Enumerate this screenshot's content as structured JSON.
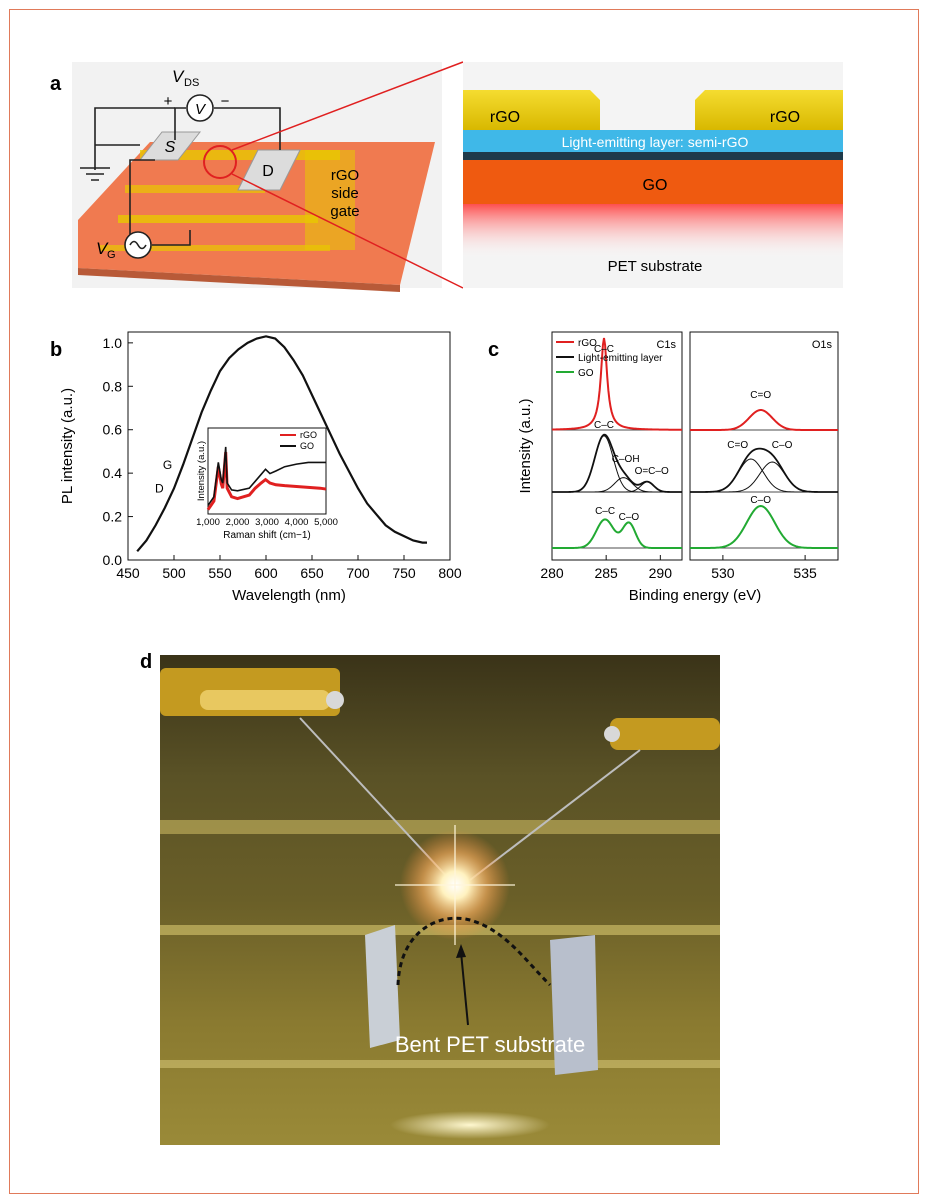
{
  "panel_labels": {
    "a": "a",
    "b": "b",
    "c": "c",
    "d": "d"
  },
  "panel_a": {
    "vds": "V",
    "vds_sub": "DS",
    "plus": "+",
    "minus": "−",
    "v_meter": "V",
    "vg": "V",
    "vg_sub": "G",
    "source": "S",
    "drain": "D",
    "side_gate_1": "rGO",
    "side_gate_2": "side",
    "side_gate_3": "gate",
    "cross_rgo_left": "rGO",
    "cross_rgo_right": "rGO",
    "light_layer": "Light-emitting layer: semi-rGO",
    "go_layer": "GO",
    "substrate": "PET substrate",
    "colors": {
      "substrate": "#f07a50",
      "gold": "#e8c800",
      "blue": "#3fb8e8",
      "go": "#ef5a10",
      "red": "#e02020"
    }
  },
  "panel_d": {
    "caption": "Bent PET substrate"
  },
  "chart_data": [
    {
      "id": "b",
      "type": "line",
      "xlabel": "Wavelength (nm)",
      "ylabel": "PL intensity (a.u.)",
      "xlim": [
        450,
        800
      ],
      "ylim": [
        0.0,
        1.05
      ],
      "xticks": [
        "450",
        "500",
        "550",
        "600",
        "650",
        "700",
        "750",
        "800"
      ],
      "yticks": [
        "0.0",
        "0.2",
        "0.4",
        "0.6",
        "0.8",
        "1.0"
      ],
      "annotations": [
        "D",
        "G"
      ],
      "series": [
        {
          "x": [
            460,
            470,
            480,
            490,
            500,
            510,
            520,
            530,
            540,
            550,
            560,
            570,
            580,
            590,
            600,
            610,
            620,
            630,
            640,
            650,
            660,
            670,
            680,
            690,
            700,
            710,
            720,
            730,
            740,
            750,
            760,
            770,
            775
          ],
          "y": [
            0.04,
            0.09,
            0.16,
            0.24,
            0.33,
            0.44,
            0.56,
            0.68,
            0.78,
            0.87,
            0.93,
            0.97,
            1.0,
            1.02,
            1.03,
            1.02,
            0.98,
            0.92,
            0.85,
            0.76,
            0.67,
            0.58,
            0.49,
            0.41,
            0.33,
            0.26,
            0.21,
            0.16,
            0.13,
            0.11,
            0.09,
            0.08,
            0.08
          ]
        }
      ],
      "inset": {
        "xlabel": "Raman shift (cm−1)",
        "ylabel": "Intensity (a.u.)",
        "xticks": [
          "1,000",
          "2,000",
          "3,000",
          "4,000",
          "5,000"
        ],
        "xlim": [
          1000,
          5000
        ],
        "ylim": [
          0,
          1
        ],
        "series": [
          {
            "name": "rGO",
            "color": "#e02020",
            "x": [
              1000,
              1200,
              1350,
              1450,
              1500,
              1600,
              1650,
              1800,
              2000,
              2400,
              2600,
              2800,
              2950,
              3100,
              3300,
              3600,
              4000,
              4400,
              4800,
              5000
            ],
            "y": [
              0.05,
              0.15,
              0.55,
              0.35,
              0.3,
              0.72,
              0.3,
              0.2,
              0.18,
              0.22,
              0.3,
              0.36,
              0.4,
              0.36,
              0.34,
              0.33,
              0.32,
              0.31,
              0.3,
              0.29
            ]
          },
          {
            "name": "GO",
            "color": "#111111",
            "x": [
              1000,
              1200,
              1350,
              1450,
              1500,
              1600,
              1650,
              1800,
              2000,
              2400,
              2600,
              2800,
              2950,
              3100,
              3300,
              3600,
              4000,
              4400,
              4800,
              5000
            ],
            "y": [
              0.1,
              0.2,
              0.6,
              0.4,
              0.36,
              0.78,
              0.36,
              0.28,
              0.27,
              0.3,
              0.38,
              0.46,
              0.52,
              0.47,
              0.5,
              0.55,
              0.58,
              0.6,
              0.6,
              0.6
            ]
          }
        ]
      }
    },
    {
      "id": "c",
      "type": "line",
      "xlabel": "Binding energy (eV)",
      "ylabel": "Intensity (a.u.)",
      "legend": [
        "rGO",
        "Light-emitting layer",
        "GO"
      ],
      "legend_colors": [
        "#e02020",
        "#111111",
        "#22aa33"
      ],
      "subplots": [
        {
          "title": "C1s",
          "xlim": [
            280,
            292
          ],
          "xticks": [
            "280",
            "285",
            "290"
          ],
          "labels": [
            "C–C",
            "C–C",
            "C–OH",
            "O=C–O",
            "C–C",
            "C–O"
          ]
        },
        {
          "title": "O1s",
          "xlim": [
            528,
            537
          ],
          "xticks": [
            "530",
            "535"
          ],
          "labels": [
            "C=O",
            "C=O",
            "C–O",
            "C–O"
          ]
        }
      ]
    }
  ]
}
